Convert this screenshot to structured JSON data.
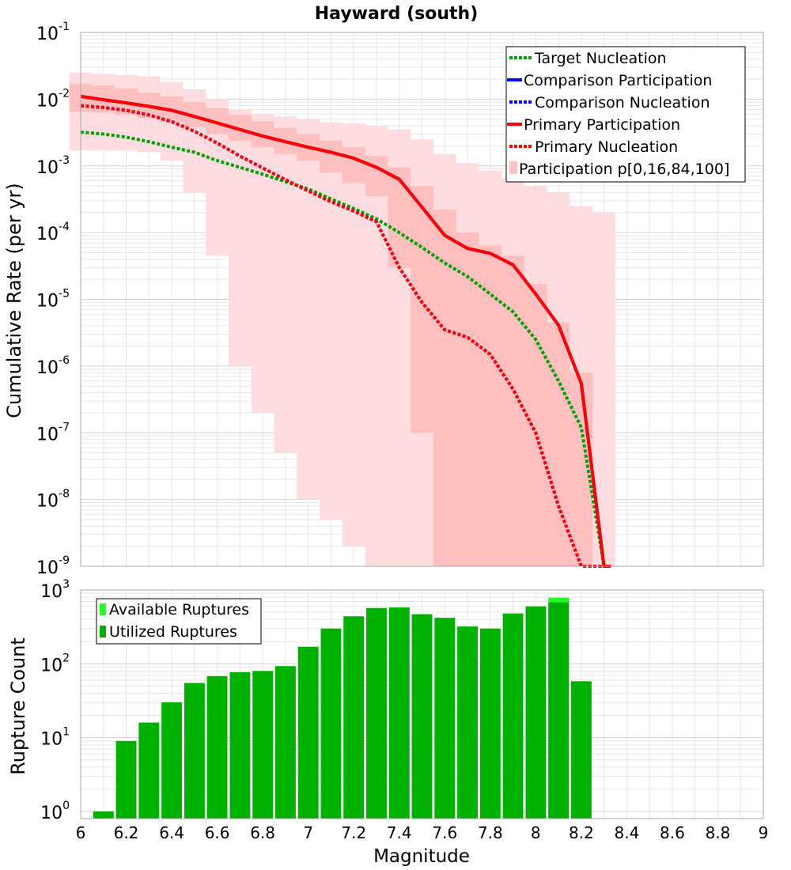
{
  "figure": {
    "title": "Hayward (south)",
    "xlabel": "Magnitude"
  },
  "colors": {
    "target": "#00a000",
    "comparison": "#0000ff",
    "primary": "#ff0000",
    "band_outer": "#ffdcdf",
    "band_inner": "#ffbfbf",
    "available": "#22ff22",
    "utilized": "#00b000",
    "grid": "#e6e6e6"
  },
  "chart_data": [
    {
      "type": "line",
      "title": "Hayward (south)",
      "xlabel": "Magnitude",
      "ylabel": "Cumulative Rate (per yr)",
      "yscale": "log",
      "xlim": [
        6,
        9
      ],
      "ylim": [
        1e-09,
        0.1
      ],
      "xticks": [
        "6",
        "6.2",
        "6.4",
        "6.6",
        "6.8",
        "7",
        "7.2",
        "7.4",
        "7.6",
        "7.8",
        "8",
        "8.2",
        "8.4",
        "8.6",
        "8.8",
        "9"
      ],
      "ytick_mantissa": [
        "10",
        "10",
        "10",
        "10",
        "10",
        "10",
        "10",
        "10",
        "10"
      ],
      "ytick_exponents": [
        "-9",
        "-8",
        "-7",
        "-6",
        "-5",
        "-4",
        "-3",
        "-2",
        "-1"
      ],
      "legend_position": "top-right",
      "series": [
        {
          "name": "Target Nucleation",
          "style": "dotted",
          "color": "#00a000",
          "x": [
            6.0,
            6.1,
            6.2,
            6.3,
            6.4,
            6.5,
            6.6,
            6.7,
            6.8,
            6.9,
            7.0,
            7.1,
            7.2,
            7.3,
            7.4,
            7.5,
            7.6,
            7.7,
            7.8,
            7.9,
            8.0,
            8.1,
            8.2,
            8.3,
            8.33
          ],
          "y": [
            0.0032,
            0.003,
            0.0027,
            0.0023,
            0.0019,
            0.0016,
            0.0012,
            0.00095,
            0.00075,
            0.00058,
            0.00045,
            0.00032,
            0.00023,
            0.00016,
            0.0001,
            6e-05,
            3.5e-05,
            2.2e-05,
            1.2e-05,
            6.5e-06,
            2.5e-06,
            6e-07,
            1.2e-07,
            1e-09,
            1e-09
          ]
        },
        {
          "name": "Comparison Participation",
          "style": "solid",
          "color": "#0000ff",
          "x": [
            6.0,
            6.1,
            6.2,
            6.3,
            6.4,
            6.5,
            6.6,
            6.7,
            6.8,
            6.9,
            7.0,
            7.1,
            7.2,
            7.3,
            7.4,
            7.5,
            7.6,
            7.7,
            7.8,
            7.9,
            8.0,
            8.1,
            8.2,
            8.3,
            8.33
          ],
          "y": [
            0.011,
            0.0098,
            0.0088,
            0.0078,
            0.0068,
            0.0055,
            0.0044,
            0.0035,
            0.0028,
            0.0023,
            0.0019,
            0.0016,
            0.0013,
            0.00095,
            0.00063,
            0.00024,
            9.1e-05,
            5.8e-05,
            4.9e-05,
            3.3e-05,
            1.2e-05,
            4.1e-06,
            5.5e-07,
            1e-09,
            1e-09
          ]
        },
        {
          "name": "Comparison Nucleation",
          "style": "dotted",
          "color": "#0000ff",
          "x": [
            6.0,
            6.1,
            6.2,
            6.3,
            6.4,
            6.5,
            6.6,
            6.7,
            6.8,
            6.9,
            7.0,
            7.1,
            7.2,
            7.3,
            7.4,
            7.5,
            7.6,
            7.7,
            7.8,
            7.9,
            8.0,
            8.1,
            8.2,
            8.3,
            8.33
          ],
          "y": [
            0.008,
            0.0075,
            0.0068,
            0.0058,
            0.0046,
            0.0033,
            0.0022,
            0.0014,
            0.00093,
            0.00062,
            0.00042,
            0.00029,
            0.00021,
            0.000145,
            3e-05,
            9e-06,
            3.5e-06,
            2.7e-06,
            1.5e-06,
            4.5e-07,
            1e-07,
            8e-09,
            1e-09,
            1e-09,
            1e-09
          ]
        },
        {
          "name": "Primary Participation",
          "style": "solid",
          "color": "#ff0000",
          "x": [
            6.0,
            6.1,
            6.2,
            6.3,
            6.4,
            6.5,
            6.6,
            6.7,
            6.8,
            6.9,
            7.0,
            7.1,
            7.2,
            7.3,
            7.4,
            7.5,
            7.6,
            7.7,
            7.8,
            7.9,
            8.0,
            8.1,
            8.2,
            8.3,
            8.33
          ],
          "y": [
            0.011,
            0.0098,
            0.0088,
            0.0078,
            0.0068,
            0.0055,
            0.0044,
            0.0035,
            0.0028,
            0.0023,
            0.0019,
            0.0016,
            0.0013,
            0.00095,
            0.00063,
            0.00024,
            9.1e-05,
            5.8e-05,
            4.9e-05,
            3.3e-05,
            1.2e-05,
            4.1e-06,
            5.5e-07,
            1e-09,
            1e-09
          ]
        },
        {
          "name": "Primary Nucleation",
          "style": "dotted",
          "color": "#ff0000",
          "x": [
            6.0,
            6.1,
            6.2,
            6.3,
            6.4,
            6.5,
            6.6,
            6.7,
            6.8,
            6.9,
            7.0,
            7.1,
            7.2,
            7.3,
            7.4,
            7.5,
            7.6,
            7.7,
            7.8,
            7.9,
            8.0,
            8.1,
            8.2,
            8.3,
            8.33
          ],
          "y": [
            0.008,
            0.0075,
            0.0068,
            0.0058,
            0.0046,
            0.0033,
            0.0022,
            0.0014,
            0.00093,
            0.00062,
            0.00042,
            0.00029,
            0.00021,
            0.000145,
            3e-05,
            9e-06,
            3.5e-06,
            2.7e-06,
            1.5e-06,
            4.5e-07,
            1e-07,
            8e-09,
            1e-09,
            1e-09,
            1e-09
          ]
        }
      ],
      "bands": {
        "name": "Participation p[0,16,84,100]",
        "x": [
          6.0,
          6.1,
          6.2,
          6.3,
          6.4,
          6.5,
          6.6,
          6.7,
          6.8,
          6.9,
          7.0,
          7.1,
          7.2,
          7.3,
          7.4,
          7.5,
          7.6,
          7.7,
          7.8,
          7.9,
          8.0,
          8.1,
          8.2,
          8.3
        ],
        "p0": [
          0.0017,
          0.0017,
          0.0017,
          0.0016,
          0.0012,
          0.0004,
          4.5e-05,
          1e-06,
          2e-07,
          5e-08,
          1e-08,
          5e-09,
          2e-09,
          1e-09,
          1e-09,
          1e-09,
          1e-09,
          1e-09,
          1e-09,
          1e-09,
          1e-09,
          1e-09,
          1e-09,
          1e-09
        ],
        "p16": [
          0.0065,
          0.0063,
          0.0058,
          0.0052,
          0.0045,
          0.0038,
          0.003,
          0.0024,
          0.0019,
          0.0015,
          0.0012,
          0.0008,
          0.00055,
          0.00035,
          3e-05,
          1e-07,
          1e-09,
          1e-09,
          1e-09,
          1e-09,
          1e-09,
          1e-09,
          1e-09,
          1e-09
        ],
        "p84": [
          0.017,
          0.016,
          0.0145,
          0.0125,
          0.011,
          0.009,
          0.0073,
          0.0058,
          0.0046,
          0.0037,
          0.003,
          0.0024,
          0.0019,
          0.0014,
          0.00095,
          0.0005,
          0.00022,
          0.0001,
          6.4e-05,
          4.5e-05,
          1.7e-05,
          4.5e-06,
          8e-07,
          1e-09
        ],
        "p100": [
          0.025,
          0.024,
          0.023,
          0.022,
          0.018,
          0.014,
          0.01,
          0.007,
          0.006,
          0.0055,
          0.005,
          0.0045,
          0.0043,
          0.004,
          0.0035,
          0.0025,
          0.0015,
          0.0011,
          0.00085,
          0.00065,
          0.0005,
          0.0004,
          0.00025,
          0.0002
        ]
      }
    },
    {
      "type": "bar",
      "ylabel": "Rupture Count",
      "xlabel": "Magnitude",
      "yscale": "log",
      "xlim": [
        6,
        9
      ],
      "ylim": [
        0.8,
        1000
      ],
      "xticks": [
        "6",
        "6.2",
        "6.4",
        "6.6",
        "6.8",
        "7",
        "7.2",
        "7.4",
        "7.6",
        "7.8",
        "8",
        "8.2",
        "8.4",
        "8.6",
        "8.8",
        "9"
      ],
      "ytick_mantissa": [
        "10",
        "10",
        "10",
        "10"
      ],
      "ytick_exponents": [
        "0",
        "1",
        "2",
        "3"
      ],
      "legend_position": "top-left",
      "categories": [
        6.1,
        6.2,
        6.3,
        6.4,
        6.5,
        6.6,
        6.7,
        6.8,
        6.9,
        7.0,
        7.1,
        7.2,
        7.3,
        7.4,
        7.5,
        7.6,
        7.7,
        7.8,
        7.9,
        8.0,
        8.1,
        8.2,
        8.3
      ],
      "series": [
        {
          "name": "Available Ruptures",
          "color": "#22ff22",
          "values": [
            1,
            9,
            16,
            30,
            55,
            68,
            77,
            80,
            93,
            170,
            300,
            440,
            570,
            580,
            470,
            420,
            320,
            300,
            480,
            600,
            790,
            58,
            0
          ]
        },
        {
          "name": "Utilized Ruptures",
          "color": "#00b000",
          "values": [
            1,
            9,
            16,
            30,
            55,
            68,
            77,
            80,
            93,
            170,
            300,
            440,
            570,
            580,
            470,
            420,
            320,
            300,
            480,
            600,
            680,
            58,
            0
          ]
        }
      ]
    }
  ]
}
